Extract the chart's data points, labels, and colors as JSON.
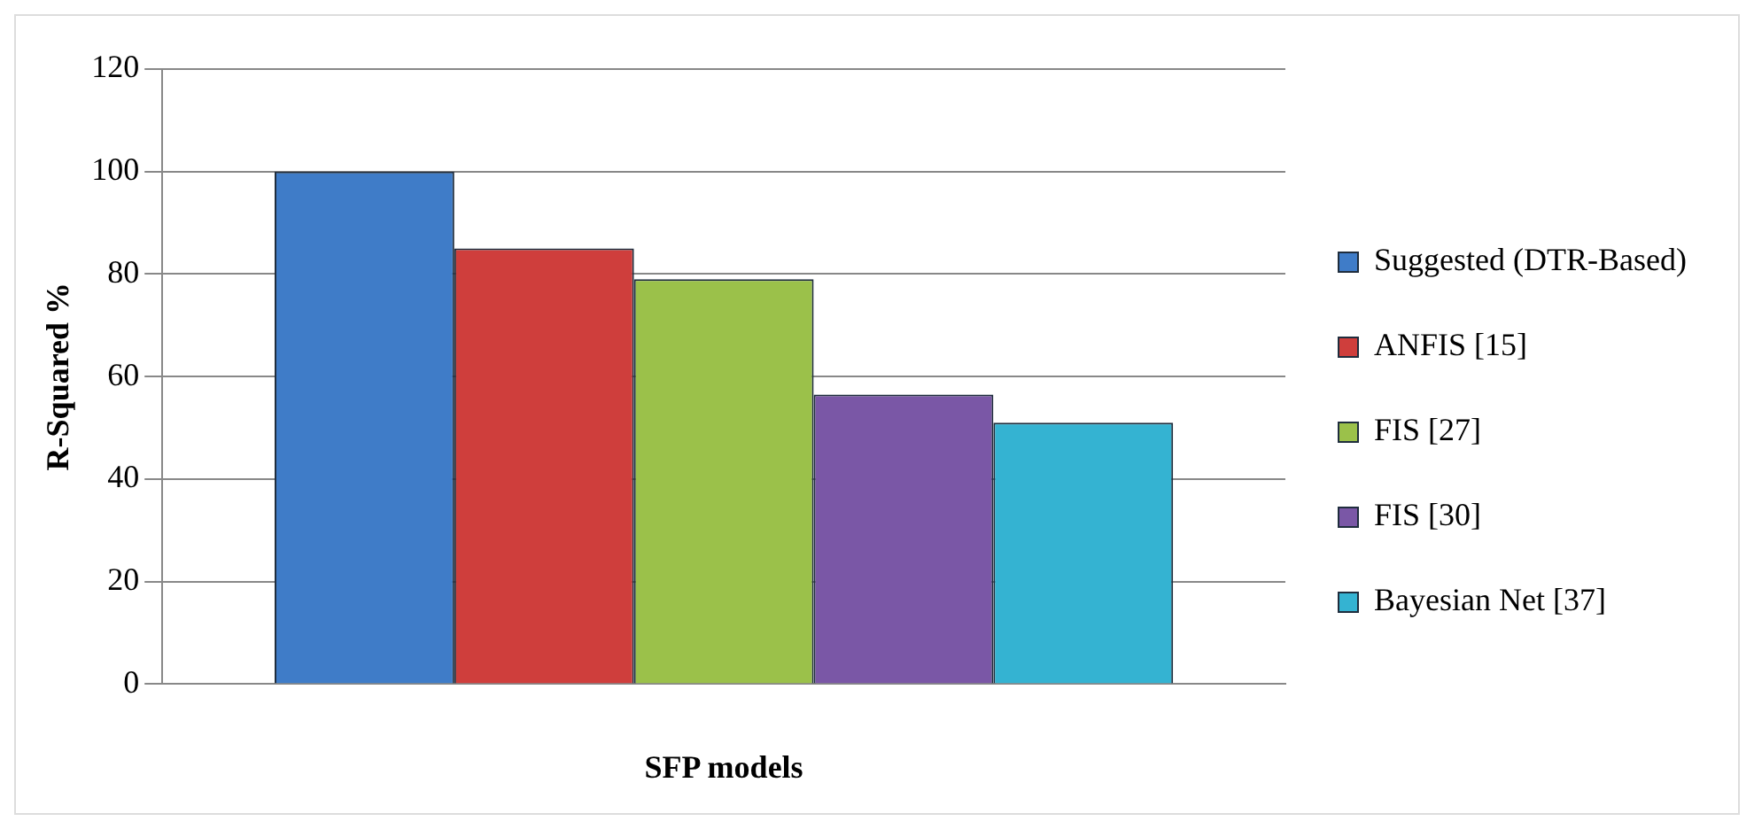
{
  "chart_data": {
    "type": "bar",
    "xlabel": "SFP models",
    "ylabel": "R-Squared %",
    "categories": [
      null
    ],
    "series": [
      {
        "name": "Suggested (DTR-Based)",
        "color": "#3f7cc8",
        "values": [
          100
        ]
      },
      {
        "name": "ANFIS [15]",
        "color": "#cf3e3c",
        "values": [
          85
        ]
      },
      {
        "name": "FIS [27]",
        "color": "#9bc14a",
        "values": [
          79
        ]
      },
      {
        "name": "FIS [30]",
        "color": "#7a57a6",
        "values": [
          56.5
        ]
      },
      {
        "name": "Bayesian Net [37]",
        "color": "#34b3d2",
        "values": [
          51
        ]
      }
    ],
    "ylim": [
      0,
      120
    ],
    "yticks": [
      0,
      20,
      40,
      60,
      80,
      100,
      120
    ],
    "grid": "y",
    "legend": "right"
  }
}
